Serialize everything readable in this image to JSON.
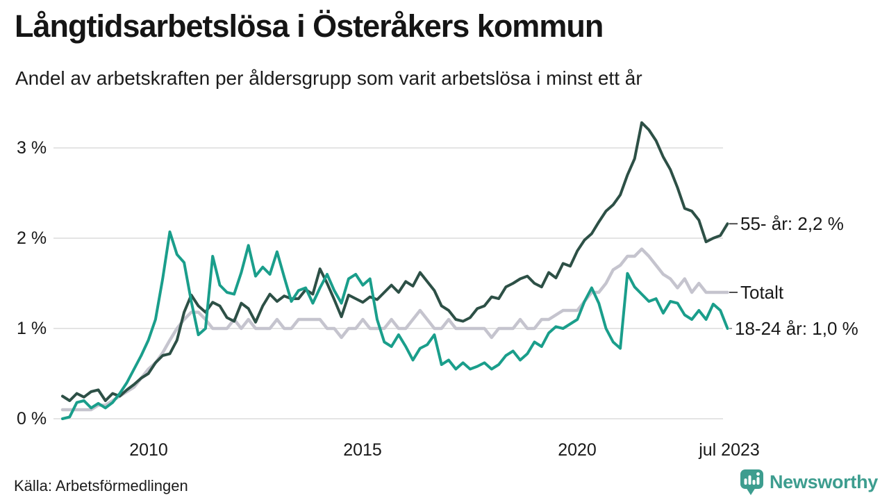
{
  "header": {
    "title": "Långtidsarbetslösa i Österåkers kommun",
    "subtitle": "Andel av arbetskraften per åldersgrupp som varit arbetslösa i minst ett år"
  },
  "footer": {
    "source": "Källa: Arbetsförmedlingen",
    "brand": "Newsworthy"
  },
  "colors": {
    "series_55_plus": "#2d5046",
    "series_total": "#c5c4ce",
    "series_18_24": "#1a9e8b",
    "gridline": "#dcdcdc",
    "brand_teal": "#3d9d8f",
    "text": "#191919"
  },
  "chart_data": {
    "type": "line",
    "title": "Långtidsarbetslösa i Österåkers kommun",
    "subtitle": "Andel av arbetskraften per åldersgrupp som varit arbetslösa i minst ett år",
    "unit": "% av arbetskraften",
    "grid": true,
    "legend_position": "right-end-labels",
    "x_axis": {
      "t_min": 2007.87,
      "t_max": 2023.54,
      "ticks": [
        {
          "label": "2010",
          "t": 2010
        },
        {
          "label": "2015",
          "t": 2015
        },
        {
          "label": "2020",
          "t": 2020
        },
        {
          "label": "jul 2023",
          "t": 2023.54
        }
      ]
    },
    "y_axis": {
      "min": 0,
      "max": 3.4,
      "ticks": [
        {
          "label": "0 %",
          "v": 0
        },
        {
          "label": "1 %",
          "v": 1
        },
        {
          "label": "2 %",
          "v": 2
        },
        {
          "label": "3 %",
          "v": 3
        }
      ]
    },
    "series": [
      {
        "name": "Totalt",
        "end_label": "Totalt",
        "color": "#c5c4ce",
        "start_year": 2008.0,
        "step_years": 0.1666667,
        "values": [
          0.1,
          0.1,
          0.1,
          0.1,
          0.1,
          0.15,
          0.15,
          0.2,
          0.25,
          0.3,
          0.35,
          0.45,
          0.55,
          0.62,
          0.73,
          0.87,
          1.0,
          1.1,
          1.18,
          1.18,
          1.1,
          1.0,
          1.0,
          1.0,
          1.1,
          1.0,
          1.1,
          1.0,
          1.0,
          1.0,
          1.1,
          1.0,
          1.0,
          1.1,
          1.1,
          1.1,
          1.1,
          1.0,
          1.0,
          0.9,
          1.0,
          1.0,
          1.1,
          1.0,
          1.0,
          1.0,
          1.1,
          1.0,
          1.0,
          1.1,
          1.2,
          1.1,
          1.0,
          1.0,
          1.1,
          1.0,
          1.0,
          1.0,
          1.0,
          1.0,
          0.9,
          1.0,
          1.0,
          1.0,
          1.1,
          1.0,
          1.0,
          1.1,
          1.1,
          1.15,
          1.2,
          1.2,
          1.2,
          1.3,
          1.4,
          1.4,
          1.5,
          1.65,
          1.7,
          1.8,
          1.8,
          1.88,
          1.8,
          1.7,
          1.6,
          1.55,
          1.45,
          1.55,
          1.4,
          1.5,
          1.4,
          1.4,
          1.4,
          1.4
        ]
      },
      {
        "name": "55- år",
        "end_label": "55- år: 2,2 %",
        "color": "#2d5046",
        "start_year": 2008.0,
        "step_years": 0.1666667,
        "values": [
          0.25,
          0.2,
          0.28,
          0.24,
          0.3,
          0.32,
          0.2,
          0.28,
          0.25,
          0.32,
          0.38,
          0.45,
          0.5,
          0.62,
          0.7,
          0.72,
          0.87,
          1.18,
          1.37,
          1.25,
          1.18,
          1.29,
          1.25,
          1.12,
          1.08,
          1.28,
          1.22,
          1.07,
          1.25,
          1.38,
          1.3,
          1.36,
          1.33,
          1.33,
          1.43,
          1.38,
          1.66,
          1.5,
          1.32,
          1.13,
          1.37,
          1.33,
          1.29,
          1.35,
          1.32,
          1.4,
          1.48,
          1.4,
          1.52,
          1.47,
          1.62,
          1.52,
          1.42,
          1.25,
          1.2,
          1.1,
          1.08,
          1.12,
          1.22,
          1.25,
          1.35,
          1.33,
          1.46,
          1.5,
          1.55,
          1.58,
          1.5,
          1.46,
          1.62,
          1.56,
          1.72,
          1.69,
          1.86,
          1.98,
          2.05,
          2.18,
          2.3,
          2.37,
          2.48,
          2.7,
          2.88,
          3.28,
          3.2,
          3.08,
          2.9,
          2.76,
          2.56,
          2.33,
          2.3,
          2.2,
          1.96,
          2.0,
          2.03,
          2.16
        ]
      },
      {
        "name": "18-24 år",
        "end_label": "18-24 år: 1,0 %",
        "color": "#1a9e8b",
        "start_year": 2008.0,
        "step_years": 0.1666667,
        "values": [
          0.0,
          0.02,
          0.18,
          0.2,
          0.12,
          0.17,
          0.12,
          0.18,
          0.28,
          0.4,
          0.55,
          0.7,
          0.87,
          1.1,
          1.55,
          2.07,
          1.82,
          1.73,
          1.3,
          0.93,
          1.0,
          1.8,
          1.48,
          1.4,
          1.38,
          1.62,
          1.92,
          1.58,
          1.68,
          1.6,
          1.85,
          1.57,
          1.3,
          1.42,
          1.45,
          1.28,
          1.45,
          1.6,
          1.42,
          1.28,
          1.55,
          1.6,
          1.48,
          1.55,
          1.1,
          0.85,
          0.8,
          0.93,
          0.8,
          0.65,
          0.78,
          0.82,
          0.93,
          0.6,
          0.65,
          0.55,
          0.62,
          0.55,
          0.58,
          0.62,
          0.55,
          0.6,
          0.7,
          0.75,
          0.65,
          0.72,
          0.85,
          0.8,
          0.95,
          1.02,
          1.0,
          1.05,
          1.1,
          1.3,
          1.45,
          1.28,
          1.0,
          0.85,
          0.78,
          1.61,
          1.46,
          1.38,
          1.3,
          1.33,
          1.17,
          1.3,
          1.28,
          1.15,
          1.1,
          1.2,
          1.1,
          1.27,
          1.2,
          1.0
        ]
      }
    ]
  }
}
